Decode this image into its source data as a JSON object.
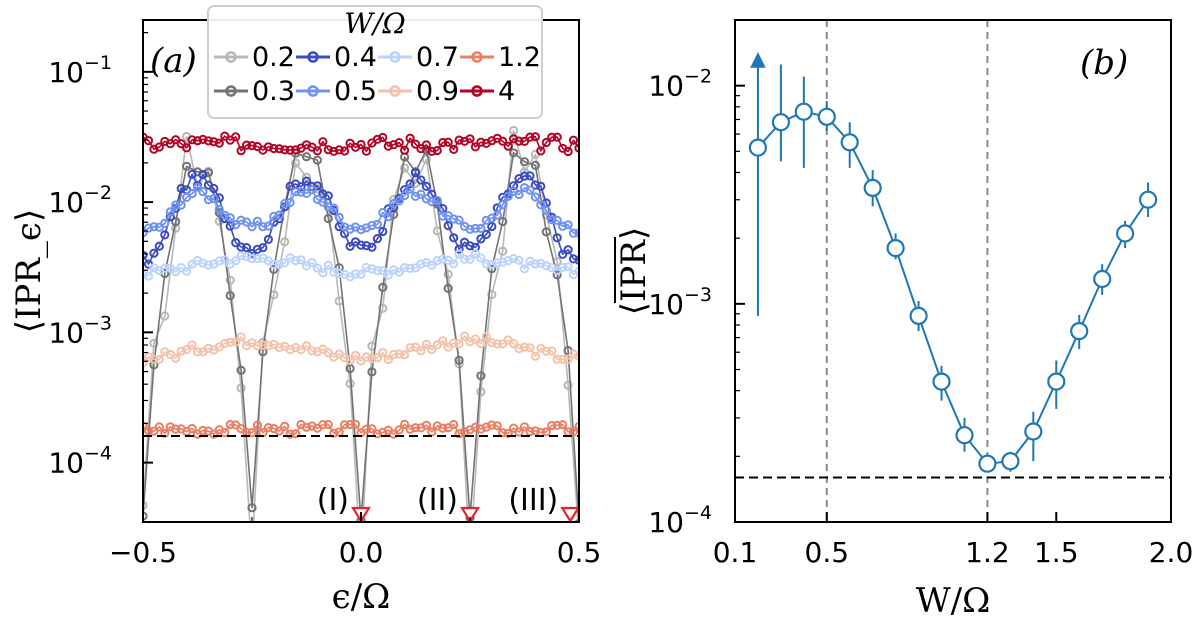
{
  "chart_data": [
    {
      "panel": "(a)",
      "type": "line",
      "xlabel": "ϵ/Ω",
      "ylabel": "⟨IPR_ϵ⟩",
      "xlim": [
        -0.5,
        0.5
      ],
      "ylim": [
        3.5e-05,
        0.25
      ],
      "yscale": "log",
      "xticks": [
        "−0.5",
        "0.0",
        "0.5"
      ],
      "yticks": [
        {
          "base": "10",
          "exp": "−1"
        },
        {
          "base": "10",
          "exp": "−2"
        },
        {
          "base": "10",
          "exp": "−3"
        },
        {
          "base": "10",
          "exp": "−4"
        }
      ],
      "legend": {
        "title": "W/Ω",
        "position": "top-center",
        "entries": [
          {
            "label": "0.2",
            "color": "#b8b8b8"
          },
          {
            "label": "0.3",
            "color": "#737373"
          },
          {
            "label": "0.4",
            "color": "#3b4cc0"
          },
          {
            "label": "0.5",
            "color": "#6f92f3"
          },
          {
            "label": "0.7",
            "color": "#bbd3fb"
          },
          {
            "label": "0.9",
            "color": "#f3c2ab"
          },
          {
            "label": "1.2",
            "color": "#ea7f62"
          },
          {
            "label": "4",
            "color": "#b40426"
          }
        ]
      },
      "reference_line": 0.00016,
      "markers": [
        {
          "label": "(I)",
          "x": 0.0
        },
        {
          "label": "(II)",
          "x": 0.25
        },
        {
          "label": "(III)",
          "x": 0.48
        }
      ],
      "series": [
        {
          "name": "0.2",
          "color": "#b8b8b8",
          "profile": "sharp",
          "peak": 0.02,
          "dip": 3e-05,
          "noise": 0.25
        },
        {
          "name": "0.3",
          "color": "#737373",
          "profile": "sharp",
          "peak": 0.02,
          "dip": 4e-05,
          "noise": 0.12
        },
        {
          "name": "0.4",
          "color": "#3b4cc0",
          "profile": "wave",
          "peak": 0.015,
          "low": 0.0045,
          "edge": 0.0035,
          "noise": 0.05
        },
        {
          "name": "0.5",
          "color": "#6f92f3",
          "profile": "wave",
          "peak": 0.012,
          "low": 0.0065,
          "edge": 0.006,
          "noise": 0.04
        },
        {
          "name": "0.7",
          "color": "#bbd3fb",
          "profile": "soft",
          "level": 0.0033,
          "amp": 0.12,
          "noise": 0.04
        },
        {
          "name": "0.9",
          "color": "#f3c2ab",
          "profile": "soft",
          "level": 0.00075,
          "amp": 0.15,
          "noise": 0.04
        },
        {
          "name": "1.2",
          "color": "#ea7f62",
          "profile": "flat",
          "level": 0.00018,
          "noise": 0.04
        },
        {
          "name": "4",
          "color": "#b40426",
          "profile": "flat",
          "level": 0.028,
          "noise": 0.06
        }
      ]
    },
    {
      "panel": "(b)",
      "type": "line",
      "xlabel": "W/Ω",
      "ylabel": "⟨IPR⟩",
      "xlim": [
        0.1,
        2.0
      ],
      "ylim": [
        0.0001,
        0.02
      ],
      "yscale": "log",
      "xticks": [
        0.1,
        0.5,
        1.2,
        1.5,
        2.0
      ],
      "xtick_labels": [
        "0.1",
        "0.5",
        "1.2",
        "1.5",
        "2.0"
      ],
      "yticks": [
        {
          "base": "10",
          "exp": "−2"
        },
        {
          "base": "10",
          "exp": "−3"
        },
        {
          "base": "10",
          "exp": "−4"
        }
      ],
      "color": "#1f77b4",
      "vlines": [
        0.5,
        1.2
      ],
      "reference_line": 0.00016,
      "arrow_at_x": 0.2,
      "series": [
        {
          "x": [
            0.2,
            0.3,
            0.4,
            0.5,
            0.6,
            0.7,
            0.8,
            0.9,
            1.0,
            1.1,
            1.2,
            1.3,
            1.4,
            1.5,
            1.6,
            1.7,
            1.8,
            1.9
          ],
          "y": [
            0.0052,
            0.0068,
            0.0076,
            0.0072,
            0.0055,
            0.0034,
            0.0018,
            0.00088,
            0.00044,
            0.00025,
            0.000185,
            0.00019,
            0.00026,
            0.00044,
            0.00075,
            0.0013,
            0.0021,
            0.003
          ],
          "ylow": [
            0.00088,
            0.0045,
            0.0042,
            0.0062,
            0.0042,
            0.0028,
            0.0016,
            0.00075,
            0.00036,
            0.00021,
            0.00017,
            0.00017,
            0.00019,
            0.00033,
            0.00062,
            0.0011,
            0.0018,
            0.0025
          ],
          "yhigh": [
            0.013,
            0.0125,
            0.011,
            0.0085,
            0.0068,
            0.0041,
            0.0021,
            0.00103,
            0.00052,
            0.0003,
            0.000205,
            0.00021,
            0.00032,
            0.00055,
            0.00089,
            0.00152,
            0.0024,
            0.0036
          ]
        }
      ]
    }
  ]
}
